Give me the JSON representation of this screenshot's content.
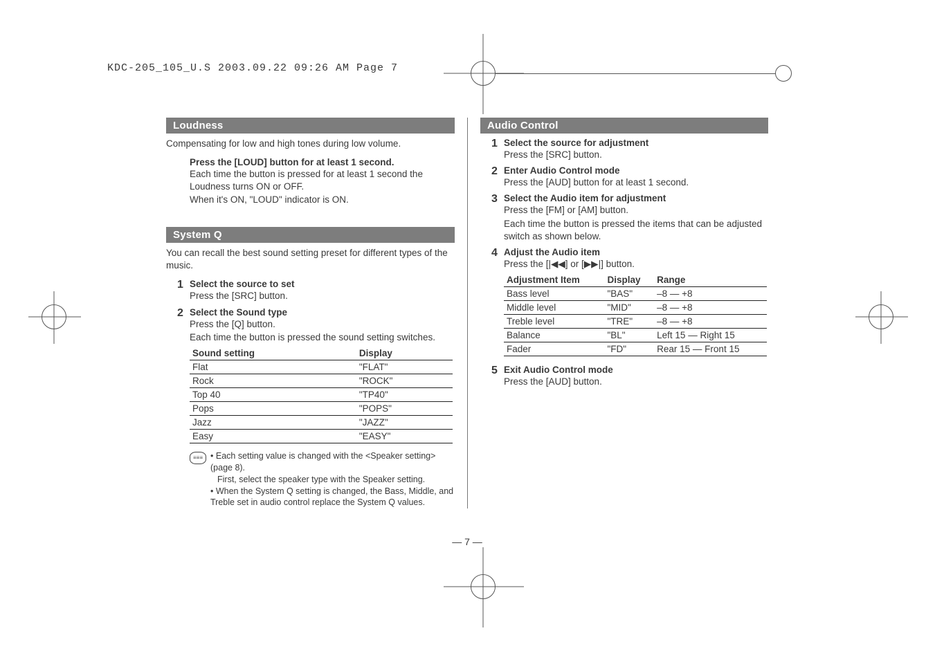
{
  "print_header": "KDC-205_105_U.S  2003.09.22  09:26 AM  Page 7",
  "page_number": "— 7 —",
  "left": {
    "loudness": {
      "heading": "Loudness",
      "intro": "Compensating for low and high tones during low volume.",
      "step_title": "Press the [LOUD] button for at least 1 second.",
      "step_body1": "Each time the button is pressed for at least 1 second the Loudness turns ON or OFF.",
      "step_body2": "When it's ON, \"LOUD\" indicator is ON."
    },
    "systemq": {
      "heading": "System Q",
      "intro": "You can recall the best sound setting preset for different types of the music.",
      "steps": [
        {
          "num": "1",
          "title": "Select the source to set",
          "text": "Press the [SRC] button."
        },
        {
          "num": "2",
          "title": "Select the Sound type",
          "text": "Press the [Q] button.",
          "sub": "Each time the button is pressed the sound setting switches."
        }
      ],
      "table": {
        "headers": [
          "Sound setting",
          "Display"
        ],
        "rows": [
          [
            "Flat",
            "\"FLAT\""
          ],
          [
            "Rock",
            "\"ROCK\""
          ],
          [
            "Top 40",
            "\"TP40\""
          ],
          [
            "Pops",
            "\"POPS\""
          ],
          [
            "Jazz",
            "\"JAZZ\""
          ],
          [
            "Easy",
            "\"EASY\""
          ]
        ]
      },
      "notes": [
        "Each setting value is changed with the <Speaker setting> (page 8).",
        "First, select the speaker type with the Speaker setting.",
        "When the System Q setting is changed, the Bass, Middle, and Treble set in audio control replace the System Q values."
      ]
    }
  },
  "right": {
    "audio": {
      "heading": "Audio Control",
      "steps": [
        {
          "num": "1",
          "title": "Select the source for adjustment",
          "text": "Press the [SRC] button."
        },
        {
          "num": "2",
          "title": "Enter Audio Control mode",
          "text": "Press the [AUD] button for at least 1 second."
        },
        {
          "num": "3",
          "title": "Select the Audio item for adjustment",
          "text": "Press the [FM] or [AM] button.",
          "sub": "Each time the button is pressed the items that can be adjusted switch as shown below."
        },
        {
          "num": "4",
          "title": "Adjust the Audio item",
          "text": "Press the [|◀◀] or [▶▶|] button."
        }
      ],
      "table": {
        "headers": [
          "Adjustment Item",
          "Display",
          "Range"
        ],
        "rows": [
          [
            "Bass level",
            "\"BAS\"",
            "–8 — +8"
          ],
          [
            "Middle level",
            "\"MID\"",
            "–8 — +8"
          ],
          [
            "Treble level",
            "\"TRE\"",
            "–8 — +8"
          ],
          [
            "Balance",
            "\"BL\"",
            "Left 15 — Right 15"
          ],
          [
            "Fader",
            "\"FD\"",
            "Rear 15 — Front 15"
          ]
        ]
      },
      "step5": {
        "num": "5",
        "title": "Exit Audio Control mode",
        "text": "Press the [AUD] button."
      }
    }
  }
}
